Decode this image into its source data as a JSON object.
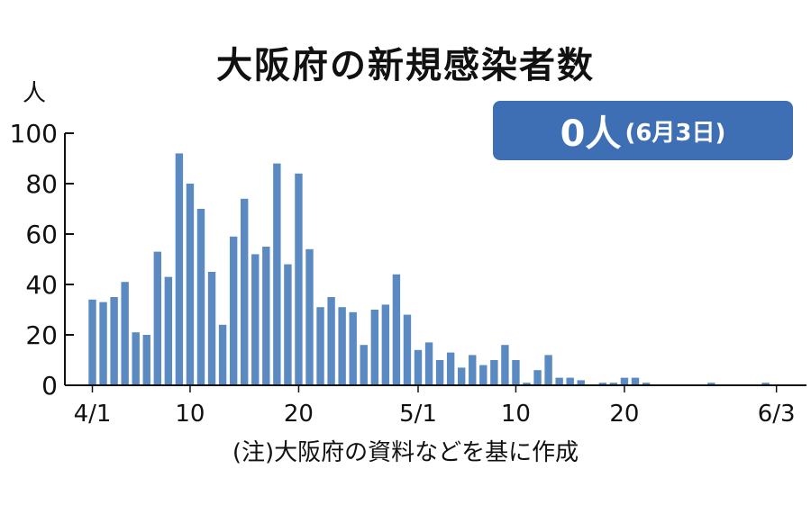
{
  "title": "大阪府の新規感染者数",
  "badge": {
    "count": "0人",
    "date": "(6月3日)"
  },
  "note": "(注)大阪府の資料などを基に作成",
  "colors": {
    "bar": "#5b8ac2",
    "badge": "#3e6fb4",
    "axis": "#111111"
  },
  "chart_data": {
    "type": "bar",
    "title": "大阪府の新規感染者数",
    "unit": "人",
    "ylim": [
      0,
      100
    ],
    "yticks": [
      0,
      20,
      40,
      60,
      80,
      100
    ],
    "xtick_labels": [
      {
        "index": 0,
        "label": "4/1"
      },
      {
        "index": 9,
        "label": "10"
      },
      {
        "index": 19,
        "label": "20"
      },
      {
        "index": 30,
        "label": "5/1"
      },
      {
        "index": 39,
        "label": "10"
      },
      {
        "index": 49,
        "label": "20"
      },
      {
        "index": 63,
        "label": "6/3"
      }
    ],
    "start_date": "4/1",
    "values": [
      34,
      33,
      35,
      41,
      21,
      20,
      53,
      43,
      92,
      80,
      70,
      45,
      24,
      59,
      74,
      52,
      55,
      88,
      48,
      84,
      54,
      31,
      35,
      31,
      29,
      16,
      30,
      32,
      44,
      28,
      14,
      17,
      10,
      13,
      7,
      12,
      8,
      10,
      16,
      10,
      1,
      6,
      12,
      3,
      3,
      2,
      0,
      1,
      1,
      3,
      3,
      1,
      0,
      0,
      0,
      0,
      0,
      1,
      0,
      0,
      0,
      0,
      1,
      0
    ]
  }
}
